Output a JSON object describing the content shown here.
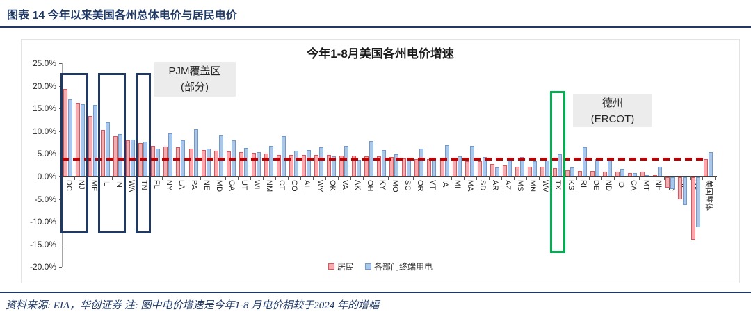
{
  "header": {
    "title": "图表 14  今年以来美国各州总体电价与居民电价"
  },
  "footer": {
    "text": "资料来源: EIA，华创证券    注: 图中电价增速是今年1-8 月电价相较于2024 年的增幅"
  },
  "chart_data": {
    "type": "bar",
    "title": "今年1-8月美国各州电价增速",
    "xlabel": "",
    "ylabel": "",
    "ylim": [
      -20,
      25
    ],
    "ytick_step": 5,
    "ytick_labels": [
      "25.0%",
      "20.0%",
      "15.0%",
      "10.0%",
      "5.0%",
      "0.0%",
      "-5.0%",
      "-10.0%",
      "-15.0%",
      "-20.0%"
    ],
    "grid": false,
    "legend_position": "bottom",
    "categories": [
      "DC",
      "NJ",
      "ME",
      "IL",
      "IN",
      "WA",
      "TN",
      "FL",
      "NY",
      "LA",
      "PA",
      "NE",
      "MD",
      "GA",
      "UT",
      "WI",
      "NM",
      "CT",
      "CO",
      "AL",
      "WY",
      "OK",
      "VA",
      "AK",
      "OH",
      "KY",
      "MO",
      "SC",
      "OR",
      "VT",
      "IA",
      "MI",
      "MA",
      "SD",
      "AR",
      "AZ",
      "MS",
      "MN",
      "WV",
      "TX",
      "KS",
      "RI",
      "DE",
      "ND",
      "ID",
      "CA",
      "MT",
      "NH",
      "NC",
      "HI",
      "NV",
      "美国整体"
    ],
    "series": [
      {
        "name": "居民",
        "fill": "#f4acb1",
        "border": "#e05258",
        "values": [
          19.3,
          16.2,
          13.4,
          10.3,
          8.9,
          7.9,
          7.3,
          6.7,
          6.6,
          6.4,
          6.1,
          5.9,
          5.7,
          5.5,
          5.4,
          5.2,
          5.1,
          4.8,
          4.7,
          4.7,
          4.8,
          4.7,
          4.6,
          4.6,
          4.5,
          4.4,
          4.3,
          4.0,
          3.9,
          3.9,
          3.6,
          3.5,
          3.4,
          3.3,
          2.8,
          2.5,
          2.2,
          2.2,
          2.1,
          1.8,
          1.4,
          1.2,
          1.2,
          1.1,
          1.0,
          0.8,
          1.0,
          0.3,
          -2.3,
          -4.9,
          -13.8,
          3.8
        ]
      },
      {
        "name": "各部门终端用电",
        "fill": "#aac7e8",
        "border": "#7099cf",
        "values": [
          17.1,
          16.0,
          15.8,
          11.9,
          9.4,
          8.1,
          7.6,
          6.1,
          9.5,
          7.9,
          10.4,
          6.2,
          9.0,
          8.0,
          6.3,
          5.3,
          6.7,
          8.9,
          5.6,
          5.8,
          6.4,
          4.5,
          6.8,
          3.7,
          7.8,
          5.8,
          4.9,
          4.0,
          6.1,
          4.1,
          6.9,
          4.5,
          6.7,
          4.3,
          2.0,
          3.6,
          4.3,
          3.3,
          3.5,
          4.9,
          2.0,
          6.4,
          3.8,
          3.9,
          1.7,
          0.7,
          0.3,
          2.1,
          -2.6,
          -6.2,
          -11.0,
          5.3
        ]
      }
    ],
    "reference_line": {
      "value": 3.8,
      "color": "#c00000",
      "style": "dashed"
    },
    "annotations": [
      {
        "id": "pjm",
        "lines": [
          "PJM覆盖区",
          "(部分)"
        ]
      },
      {
        "id": "ercot",
        "lines": [
          "德州",
          "(ERCOT)"
        ]
      }
    ],
    "highlight_boxes": [
      {
        "from": "DC",
        "to": "NJ",
        "color": "#1f3864"
      },
      {
        "from": "IL",
        "to": "IN",
        "color": "#1f3864"
      },
      {
        "from": "TN",
        "to": "TN",
        "color": "#1f3864"
      },
      {
        "from": "TX",
        "to": "TX",
        "color": "#00b050"
      }
    ]
  }
}
